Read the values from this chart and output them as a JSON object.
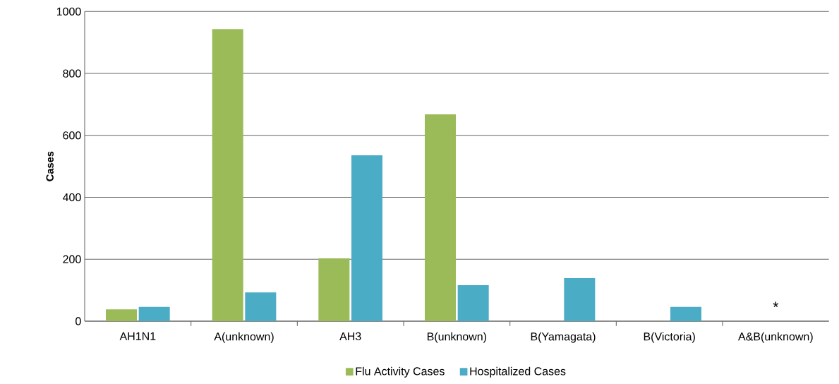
{
  "chart_data": {
    "type": "bar",
    "ylabel": "Cases",
    "categories": [
      "AH1N1",
      "A(unknown)",
      "AH3",
      "B(unknown)",
      "B(Yamagata)",
      "B(Victoria)",
      "A&B(unknown)"
    ],
    "series": [
      {
        "name": "Flu Activity Cases",
        "color": "#9bbb59",
        "values": [
          38,
          943,
          203,
          668,
          null,
          null,
          null
        ]
      },
      {
        "name": "Hospitalized Cases",
        "color": "#4bacc6",
        "values": [
          46,
          93,
          536,
          116,
          139,
          46,
          null
        ]
      }
    ],
    "ylim": [
      0,
      1000
    ],
    "yticks": [
      0,
      200,
      400,
      600,
      800,
      1000
    ],
    "grid": "y",
    "legend": "bottom",
    "annotations": [
      "*"
    ]
  }
}
